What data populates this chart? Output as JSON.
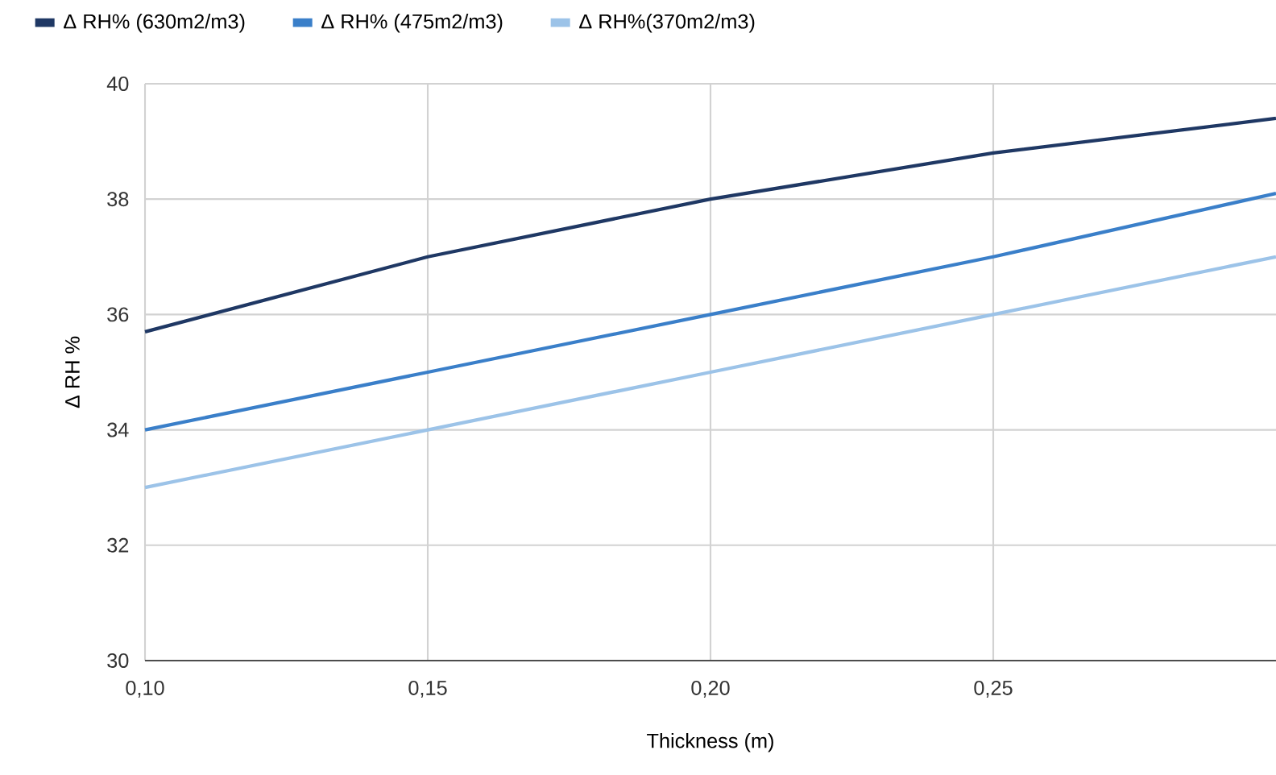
{
  "chart_data": {
    "type": "line",
    "xlabel": "Thickness (m)",
    "ylabel": "Δ RH %",
    "x": [
      0.1,
      0.15,
      0.2,
      0.25,
      0.3
    ],
    "series": [
      {
        "name": "Δ RH% (630m2/m3)",
        "color": "#1f3864",
        "values": [
          35.7,
          37,
          38,
          38.8,
          39.4
        ]
      },
      {
        "name": "Δ RH% (475m2/m3)",
        "color": "#3a7fc9",
        "values": [
          34,
          35,
          36,
          37,
          38.1
        ]
      },
      {
        "name": "Δ RH%(370m2/m3)",
        "color": "#9cc3e8",
        "values": [
          33,
          34,
          35,
          36,
          37
        ]
      }
    ],
    "xlim": [
      0.1,
      0.3
    ],
    "ylim": [
      30,
      40
    ],
    "xticks": [
      {
        "value": 0.1,
        "label": "0,10"
      },
      {
        "value": 0.15,
        "label": "0,15"
      },
      {
        "value": 0.2,
        "label": "0,20"
      },
      {
        "value": 0.25,
        "label": "0,25"
      }
    ],
    "yticks": [
      30,
      32,
      34,
      36,
      38,
      40
    ],
    "grid": true,
    "legend": "top left",
    "marker": "none",
    "line_style": "solid"
  }
}
